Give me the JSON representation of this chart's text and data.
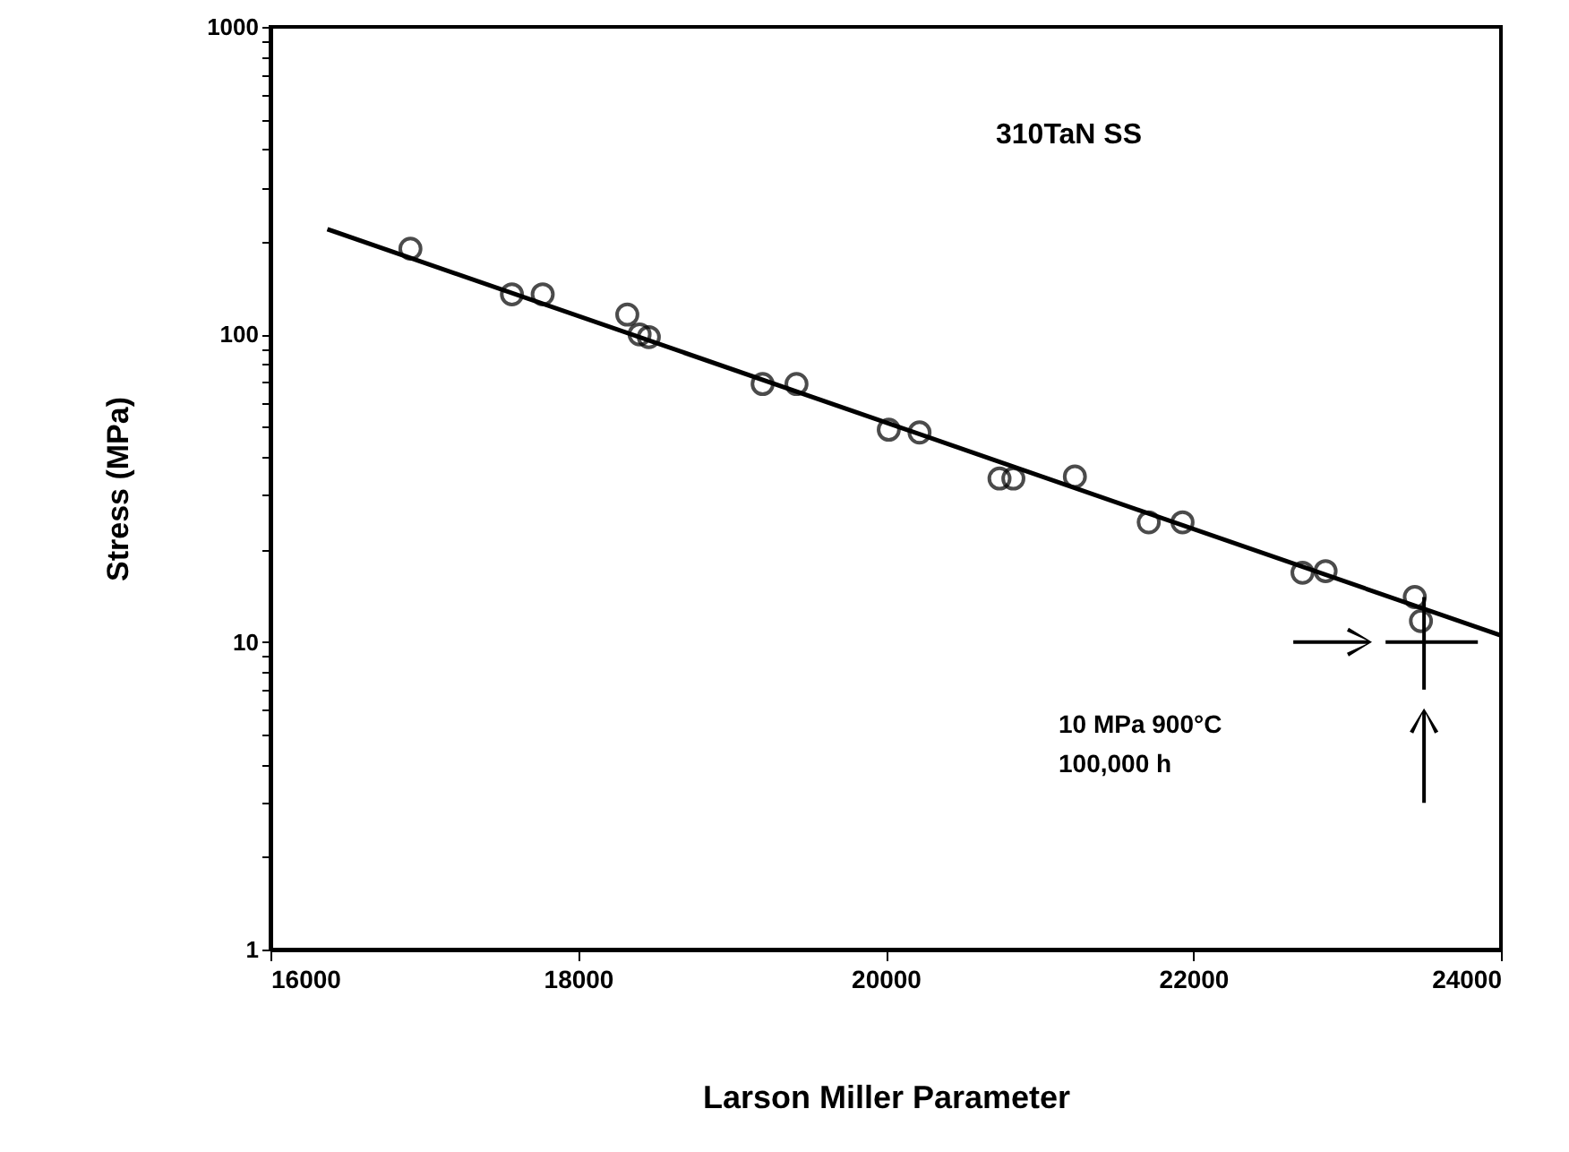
{
  "chart_data": {
    "type": "scatter",
    "title": "310TaN  SS",
    "xlabel": "Larson Miller Parameter",
    "ylabel": "Stress    (MPa)",
    "log": "y",
    "marker": "circle",
    "grid": false,
    "xlim": [
      16000,
      24000
    ],
    "xticks": [
      16000,
      18000,
      20000,
      22000,
      24000
    ],
    "ylim": [
      1,
      1000
    ],
    "yticks": [
      1,
      {
        "value": 2,
        "label": null
      },
      {
        "value": 3,
        "label": null
      },
      {
        "value": 4,
        "label": null
      },
      {
        "value": 5,
        "label": null
      },
      {
        "value": 6,
        "label": null
      },
      {
        "value": 7,
        "label": null
      },
      {
        "value": 8,
        "label": null
      },
      {
        "value": 9,
        "label": null
      },
      10,
      {
        "value": 20,
        "label": null
      },
      {
        "value": 30,
        "label": null
      },
      {
        "value": 40,
        "label": null
      },
      {
        "value": 50,
        "label": null
      },
      {
        "value": 60,
        "label": null
      },
      {
        "value": 70,
        "label": null
      },
      {
        "value": 80,
        "label": null
      },
      {
        "value": 90,
        "label": null
      },
      100,
      {
        "value": 200,
        "label": null
      },
      {
        "value": 300,
        "label": null
      },
      {
        "value": 400,
        "label": null
      },
      {
        "value": 500,
        "label": null
      },
      {
        "value": 600,
        "label": null
      },
      {
        "value": 700,
        "label": null
      },
      {
        "value": 800,
        "label": null
      },
      {
        "value": 900,
        "label": null
      },
      1000
    ],
    "series": [
      {
        "color": "#000000",
        "x": [
          16910,
          17570,
          17770,
          18320,
          18400,
          18460,
          19200,
          19420,
          20020,
          20220,
          20740,
          20830,
          21230,
          21710,
          21930,
          22710,
          22860,
          23440,
          23480
        ],
        "values": [
          190,
          135,
          135,
          116,
          100,
          98,
          69,
          69,
          49,
          48,
          34,
          34,
          34.5,
          24.5,
          24.5,
          16.8,
          17,
          14,
          11.7
        ]
      },
      {
        "type": "line",
        "color": "#000000",
        "marker": "none",
        "x": [
          16370,
          24000
        ],
        "values": [
          220,
          10.5
        ]
      }
    ],
    "annotations": [
      "10 MPa 900°C",
      "100,000  h"
    ]
  }
}
